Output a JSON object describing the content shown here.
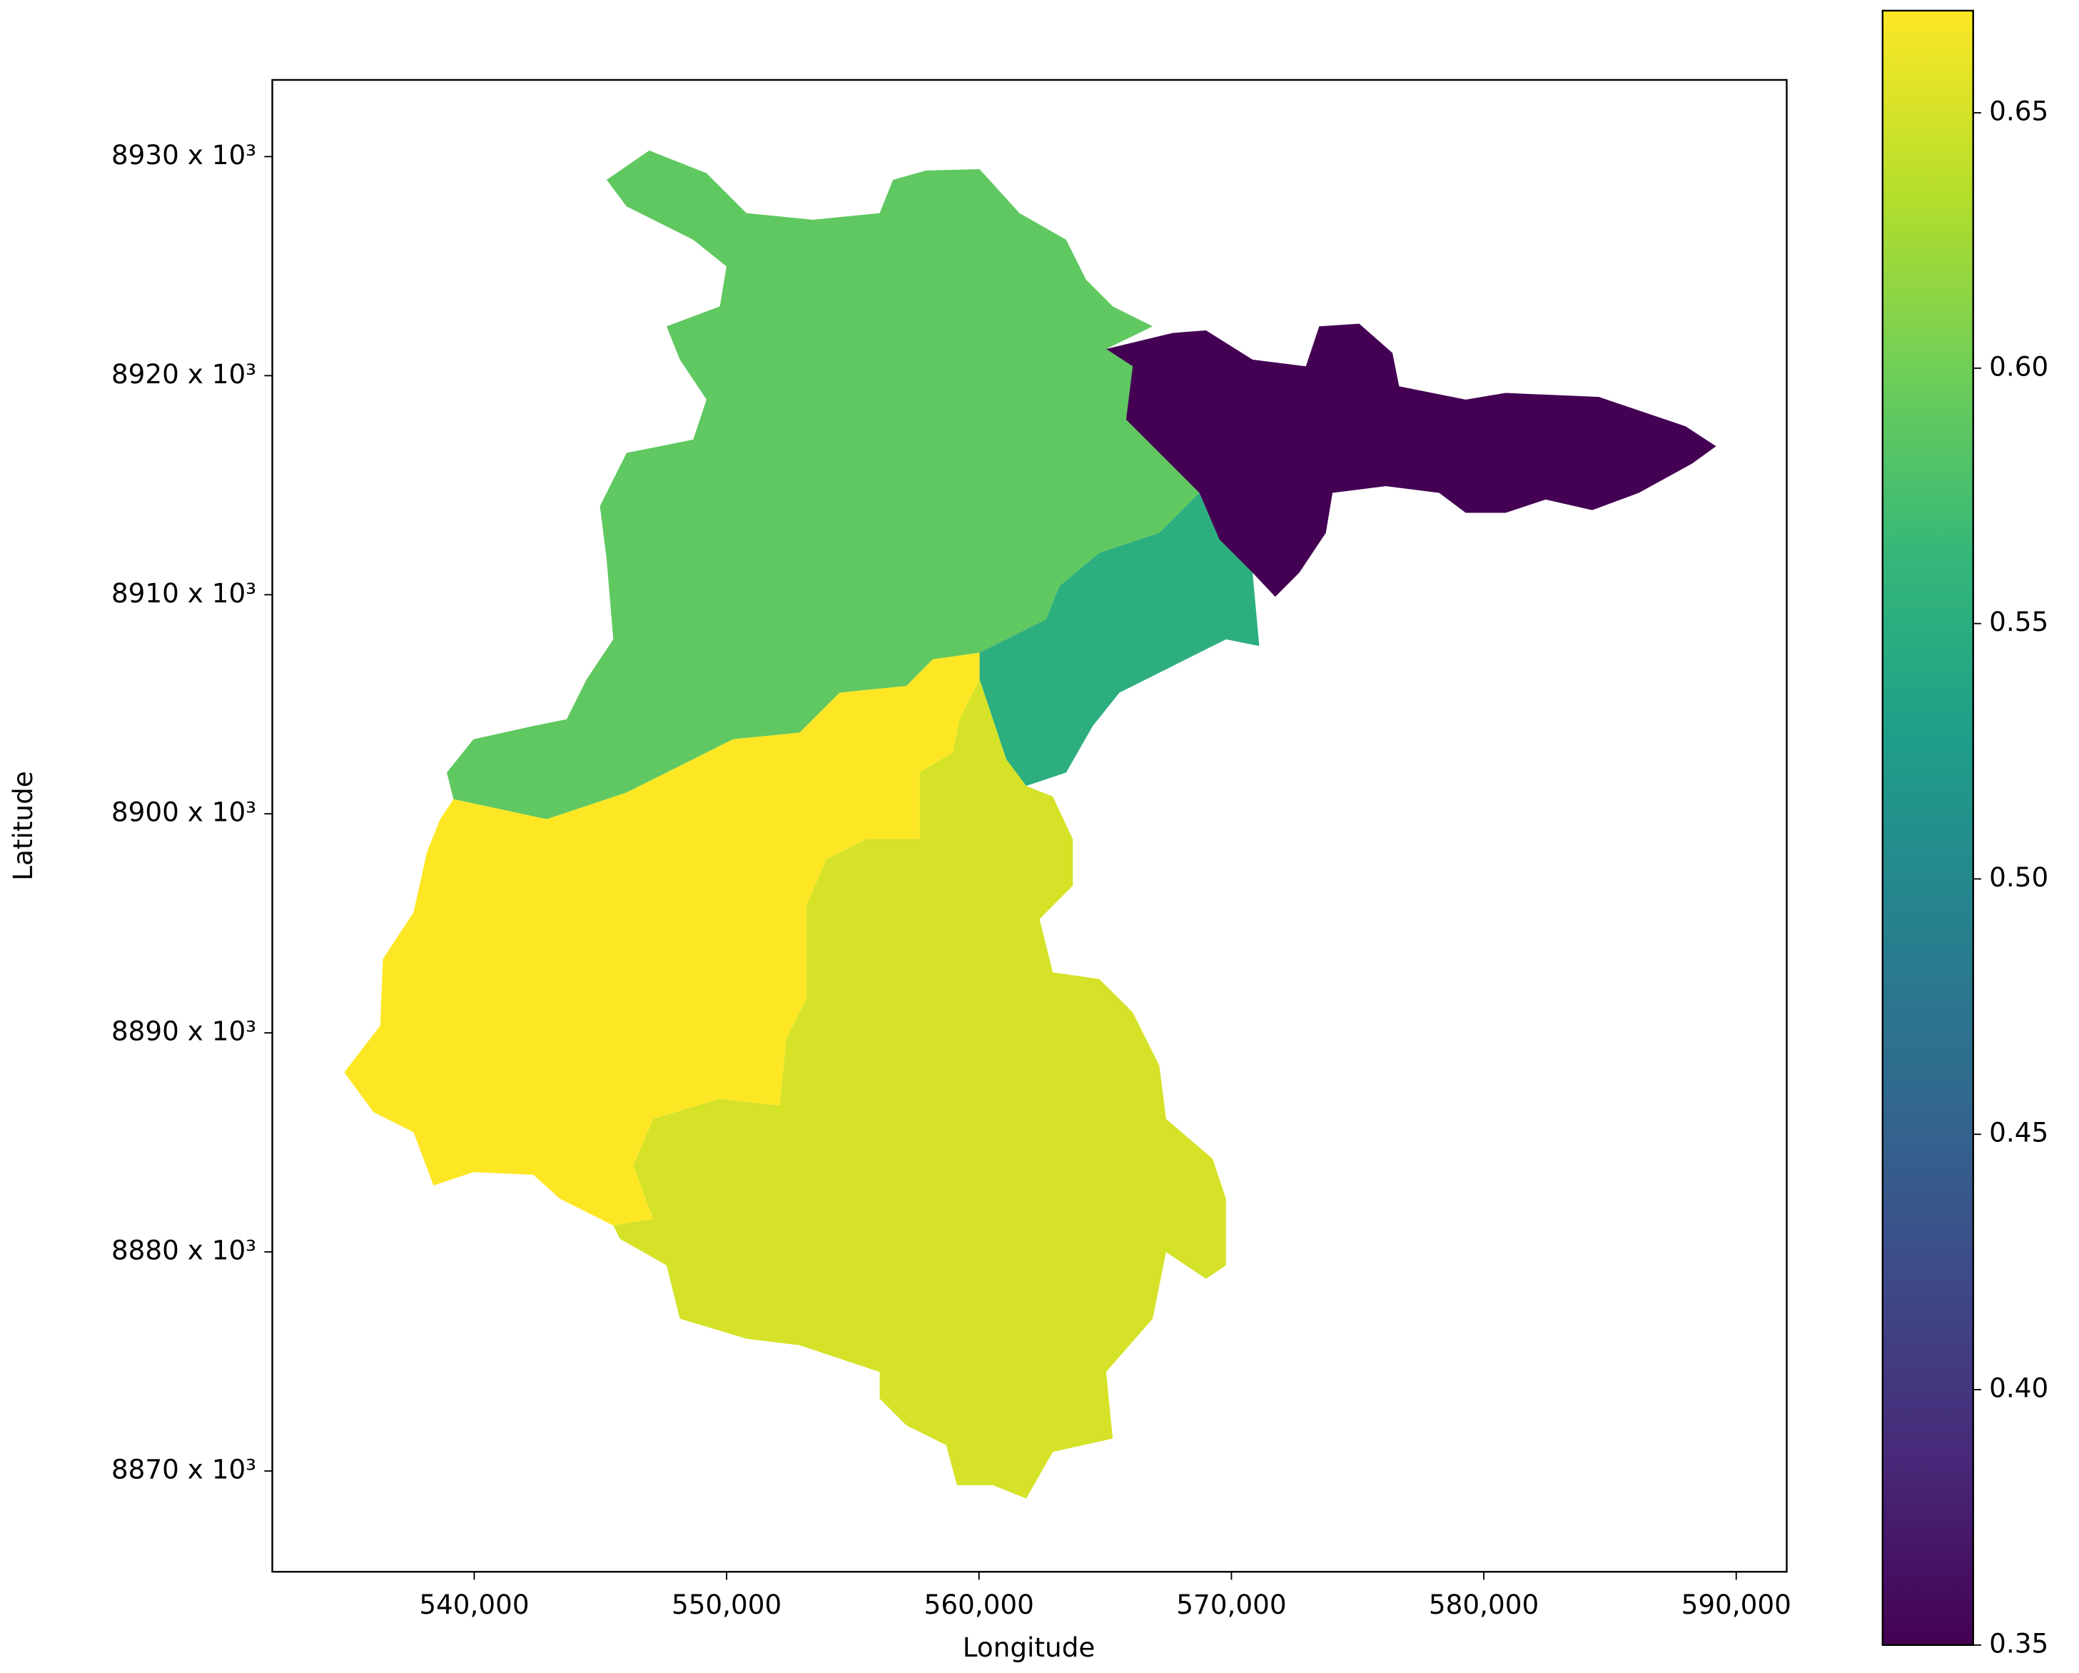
{
  "chart_data": {
    "type": "choropleth",
    "xlabel": "Longitude",
    "ylabel": "Latitude",
    "xlim": [
      532000,
      592000
    ],
    "xticks": [
      {
        "value": 540000,
        "label": "540,000"
      },
      {
        "value": 550000,
        "label": "550,000"
      },
      {
        "value": 560000,
        "label": "560,000"
      },
      {
        "value": 570000,
        "label": "570,000"
      },
      {
        "value": 580000,
        "label": "580,000"
      },
      {
        "value": 590000,
        "label": "590,000"
      }
    ],
    "ylim": [
      8865400,
      8933500
    ],
    "yticks": [
      {
        "value": 8870000,
        "label": "8870 x 10³"
      },
      {
        "value": 8880000,
        "label": "8880 x 10³"
      },
      {
        "value": 8890000,
        "label": "8890 x 10³"
      },
      {
        "value": 8900000,
        "label": "8900 x 10³"
      },
      {
        "value": 8910000,
        "label": "8910 x 10³"
      },
      {
        "value": 8920000,
        "label": "8920 x 10³"
      },
      {
        "value": 8930000,
        "label": "8930 x 10³"
      }
    ],
    "values": [
      0.59,
      0.35,
      0.55,
      0.67,
      0.65
    ],
    "colormap": "viridis",
    "clim": [
      0.35,
      0.67
    ],
    "cticks": [
      0.35,
      {
        "value": 0.4,
        "label": "0.40"
      },
      0.45,
      {
        "value": 0.5,
        "label": "0.50"
      },
      0.55,
      {
        "value": 0.6,
        "label": "0.60"
      },
      0.65
    ]
  }
}
